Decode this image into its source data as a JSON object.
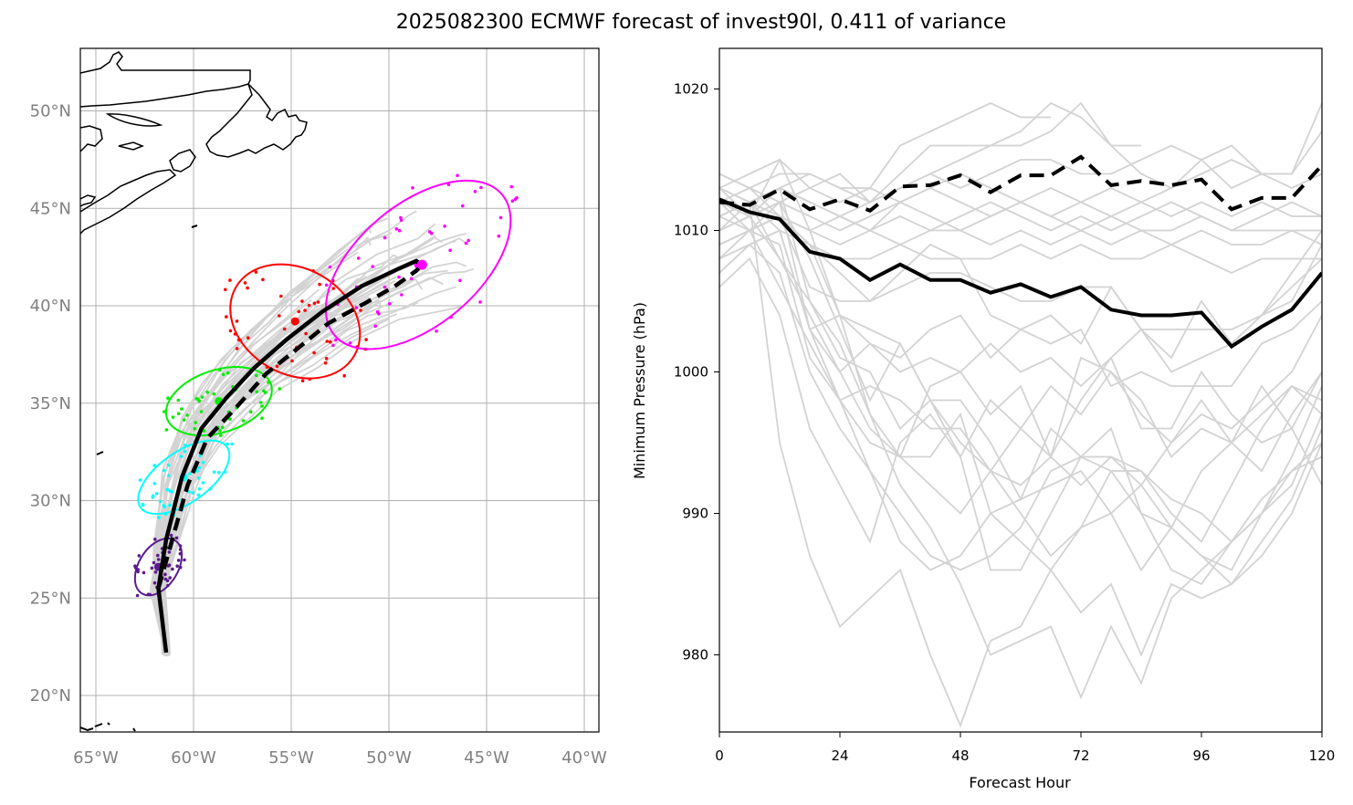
{
  "title": "2025082300 ECMWF forecast of invest90l, 0.411 of variance",
  "colors": {
    "ensemble": "#d3d3d3",
    "mean": "#000000",
    "ellipse_t24": "#5b1a8e",
    "ellipse_t48": "#00ffff",
    "ellipse_t72": "#00ee00",
    "ellipse_t96": "#ff0000",
    "ellipse_t120": "#ff00ff"
  },
  "chart_data": [
    {
      "type": "map-track",
      "lon_ticks": [
        "65°W",
        "60°W",
        "55°W",
        "50°W",
        "45°W",
        "40°W"
      ],
      "lat_ticks": [
        "20°N",
        "25°N",
        "30°N",
        "35°N",
        "40°N",
        "45°N",
        "50°N"
      ],
      "lon_range": [
        -65.8,
        -39.2
      ],
      "lat_range": [
        18.0,
        53.2
      ],
      "grid": true,
      "mean_track": [
        [
          -61.4,
          22.2
        ],
        [
          -61.8,
          25.5
        ],
        [
          -61.4,
          28.0
        ],
        [
          -60.6,
          31.2
        ],
        [
          -59.6,
          33.7
        ],
        [
          -58.3,
          35.3
        ],
        [
          -56.9,
          36.8
        ],
        [
          -55.2,
          38.3
        ],
        [
          -53.4,
          39.7
        ],
        [
          -51.4,
          41.0
        ],
        [
          -49.5,
          41.9
        ],
        [
          -48.6,
          42.3
        ],
        [
          -48.3,
          42.1
        ]
      ],
      "dashed_track": [
        [
          -61.8,
          25.5
        ],
        [
          -61.2,
          27.6
        ],
        [
          -60.3,
          30.8
        ],
        [
          -59.3,
          33.2
        ],
        [
          -57.8,
          34.8
        ],
        [
          -56.3,
          36.5
        ],
        [
          -54.8,
          37.7
        ],
        [
          -53.1,
          39.1
        ],
        [
          -51.1,
          40.2
        ],
        [
          -49.7,
          41.0
        ],
        [
          -48.6,
          41.8
        ],
        [
          -48.3,
          42.1
        ]
      ],
      "ellipses": [
        {
          "label": "t24",
          "center": [
            -61.8,
            26.6
          ],
          "semi_major_deg": 1.6,
          "semi_minor_deg": 1.0,
          "angle": 58
        },
        {
          "label": "t48",
          "center": [
            -60.5,
            31.2
          ],
          "semi_major_deg": 2.7,
          "semi_minor_deg": 1.3,
          "angle": 35
        },
        {
          "label": "t72",
          "center": [
            -58.7,
            35.1
          ],
          "semi_major_deg": 2.8,
          "semi_minor_deg": 1.6,
          "angle": 18
        },
        {
          "label": "t96",
          "center": [
            -54.8,
            39.2
          ],
          "semi_major_deg": 3.5,
          "semi_minor_deg": 2.7,
          "angle": -30
        },
        {
          "label": "t120",
          "center": [
            -48.5,
            42.1
          ],
          "semi_major_deg": 5.6,
          "semi_minor_deg": 3.1,
          "angle": 40
        }
      ]
    },
    {
      "type": "line",
      "xlabel": "Forecast Hour",
      "ylabel": "Minimum Pressure (hPa)",
      "x_ticks": [
        0,
        24,
        48,
        72,
        96,
        120
      ],
      "y_ticks": [
        980,
        990,
        1000,
        1010,
        1020
      ],
      "xlim": [
        0,
        120
      ],
      "ylim": [
        973,
        1021
      ],
      "x": [
        0,
        6,
        12,
        18,
        24,
        30,
        36,
        42,
        48,
        54,
        60,
        66,
        72,
        78,
        84,
        90,
        96,
        102,
        108,
        114,
        120
      ],
      "series": [
        {
          "style": "solid",
          "values": [
            1012.2,
            1011.3,
            1010.8,
            1008.5,
            1008.0,
            1006.5,
            1007.6,
            1006.5,
            1006.5,
            1005.6,
            1006.2,
            1005.3,
            1006.0,
            1004.4,
            1004.0,
            1004.0,
            1004.2,
            1001.8,
            1003.2,
            1004.4,
            1007.0
          ]
        },
        {
          "style": "dashed",
          "values": [
            1012.0,
            1011.8,
            1012.9,
            1011.5,
            1012.2,
            1011.4,
            1013.1,
            1013.2,
            1013.9,
            1012.7,
            1013.9,
            1013.9,
            1015.2,
            1013.2,
            1013.5,
            1013.2,
            1013.6,
            1011.5,
            1012.3,
            1012.3,
            1014.6
          ]
        }
      ],
      "ensemble": [
        [
          1012,
          1011,
          1013,
          1012,
          1011,
          1012,
          1013,
          1014,
          1015,
          1016,
          1017,
          1019,
          1018,
          1016,
          1016
        ],
        [
          1013,
          1014,
          1015,
          1013,
          1012,
          1013,
          1016,
          1017,
          1018,
          1019,
          1018,
          1018
        ],
        [
          1013,
          1012,
          1013,
          1014,
          1013,
          1012,
          1014,
          1016,
          1016,
          1016,
          1016,
          1017,
          1019,
          1016,
          1014,
          1013,
          1015,
          1016,
          1014,
          1014,
          1019
        ],
        [
          1014,
          1013,
          1012,
          1013,
          1014,
          1012,
          1013,
          1014,
          1013,
          1014,
          1015,
          1015,
          1014,
          1014,
          1015,
          1016,
          1015,
          1013,
          1014,
          1014,
          1017
        ],
        [
          1012,
          1013,
          1014,
          1014,
          1013,
          1013,
          1012,
          1013,
          1014,
          1013,
          1012,
          1013,
          1012,
          1013,
          1012,
          1013,
          1014,
          1015,
          1014,
          1013,
          1014
        ],
        [
          1011,
          1012,
          1013,
          1012,
          1011,
          1010,
          1012,
          1013,
          1012,
          1011,
          1012,
          1011,
          1012,
          1011,
          1012,
          1011,
          1012,
          1011,
          1012,
          1011,
          1011
        ],
        [
          1010,
          1011,
          1012,
          1011,
          1010,
          1011,
          1012,
          1011,
          1010,
          1011,
          1012,
          1011,
          1010,
          1011,
          1010,
          1010,
          1011,
          1010,
          1010,
          1010,
          1010
        ],
        [
          1011,
          1012,
          1011,
          1010,
          1011,
          1010,
          1011,
          1010,
          1011,
          1012,
          1011,
          1010,
          1011,
          1010,
          1011,
          1012,
          1011,
          1010,
          1011,
          1012,
          1011
        ],
        [
          1009,
          1010,
          1011,
          1010,
          1009,
          1010,
          1009,
          1010,
          1010,
          1009,
          1010,
          1009,
          1010,
          1009,
          1010,
          1009,
          1010,
          1009,
          1009,
          1010,
          1009
        ],
        [
          1008,
          1009,
          1010,
          1009,
          1008,
          1008,
          1009,
          1008,
          1008,
          1008,
          1009,
          1008,
          1009,
          1008,
          1008,
          1009,
          1008,
          1007,
          1008,
          1008,
          1008
        ],
        [
          1011,
          1010,
          1011,
          1006,
          1005,
          1005,
          1006,
          1007,
          1007,
          1006,
          1005,
          1005,
          1006,
          1006,
          1003,
          1003,
          1003,
          1003,
          1004,
          1006,
          1008
        ],
        [
          1012,
          1010,
          1011,
          1009,
          1007,
          1005,
          1007,
          1009,
          1008,
          1004,
          1003,
          1004,
          1002,
          1006,
          1003,
          1001,
          1005,
          1002,
          1004,
          1005,
          1009
        ],
        [
          1007,
          1009,
          1010,
          1003,
          1004,
          1002,
          1001,
          1003,
          1004,
          1001,
          1003,
          1002,
          1003,
          999,
          1000,
          999,
          999,
          999,
          1002,
          1003,
          1005
        ],
        [
          1012,
          1011,
          1015,
          1010,
          1004,
          1003,
          1002,
          998,
          994,
          998,
          996,
          999,
          997,
          1000,
          997,
          995,
          997,
          996,
          998,
          1000,
          1004
        ],
        [
          1013,
          1011,
          1012,
          1008,
          1003,
          998,
          1002,
          998,
          998,
          995,
          991,
          996,
          994,
          994,
          992,
          995,
          998,
          995,
          999,
          996,
          1000
        ],
        [
          1009,
          1010,
          1012,
          1003,
          1000,
          1002,
          1000,
          1001,
          1000,
          997,
          999,
          994,
          1001,
          1000,
          998,
          994,
          996,
          995,
          997,
          999,
          997
        ],
        [
          1010,
          1012,
          1008,
          1004,
          1000,
          996,
          994,
          999,
          1000,
          1002,
          1000,
          1001,
          999,
          1001,
          996,
          996,
          1000,
          997,
          995,
          996,
          992
        ],
        [
          1009,
          1010,
          1006,
          1002,
          998,
          995,
          994,
          992,
          990,
          993,
          996,
          994,
          992,
          994,
          993,
          991,
          990,
          988,
          991,
          993,
          995
        ],
        [
          1008,
          1010,
          1009,
          1001,
          998,
          999,
          998,
          996,
          996,
          993,
          990,
          987,
          989,
          993,
          993,
          990,
          988,
          992,
          996,
          999,
          998
        ],
        [
          1010,
          1011,
          1008,
          1005,
          1002,
          997,
          994,
          994,
          997,
          990,
          988,
          986,
          989,
          990,
          992,
          989,
          987,
          985,
          987,
          990,
          995
        ],
        [
          1007,
          1009,
          1007,
          1000,
          996,
          993,
          988,
          986,
          987,
          990,
          991,
          992,
          993,
          990,
          986,
          989,
          993,
          995,
          993,
          997,
          1000
        ],
        [
          1006,
          1008,
          1004,
          996,
          992,
          988,
          995,
          997,
          994,
          986,
          986,
          990,
          994,
          993,
          990,
          986,
          985,
          988,
          990,
          993,
          994
        ],
        [
          1013,
          1012,
          995,
          987,
          982,
          984,
          986,
          980,
          975,
          981,
          982,
          986,
          983,
          985,
          980,
          985,
          984,
          985,
          988,
          991,
          996
        ],
        [
          1014,
          1013,
          1011,
          1009,
          1004,
          997,
          992,
          989,
          985,
          980,
          981,
          982,
          977,
          982,
          978,
          984,
          986,
          988,
          990,
          992,
          997
        ],
        [
          1011,
          1012,
          1010,
          1003,
          998,
          993,
          990,
          987,
          986,
          987,
          989,
          993,
          994,
          996,
          990,
          989,
          987,
          986,
          990,
          994,
          999
        ],
        [
          1010,
          1011,
          1013,
          1005,
          1001,
          1000,
          996,
          998,
          995,
          993,
          992,
          994,
          998,
          1001,
          1003,
          1000,
          1001,
          1002,
          1004,
          1007,
          1010
        ]
      ]
    }
  ]
}
